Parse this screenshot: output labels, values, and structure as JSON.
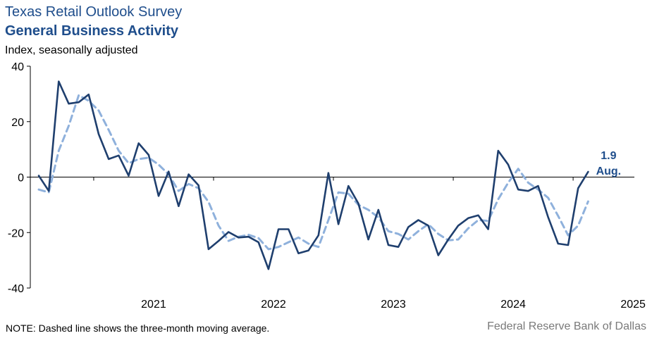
{
  "header": {
    "title": "Texas Retail Outlook Survey",
    "subtitle": "General Business Activity",
    "unit": "Index, seasonally adjusted"
  },
  "footer": {
    "note": "NOTE: Dashed line shows the three-month moving average.",
    "source": "Federal Reserve Bank of Dallas"
  },
  "colors": {
    "index_line": "#1f3f6e",
    "moving_average_line": "#8fb1dc",
    "label": "#1f4e8c"
  },
  "chart_data": {
    "type": "line",
    "title": "General Business Activity",
    "ylabel": "Index, seasonally adjusted",
    "xlabel": "",
    "ylim": [
      -40,
      40
    ],
    "y_ticks": [
      40,
      20,
      0,
      -20,
      -40
    ],
    "x_tick_labels": [
      "2021",
      "2022",
      "2023",
      "2024",
      "2025"
    ],
    "x_start": "2020-07",
    "grid": false,
    "last_value_label": {
      "value": "1.9",
      "month": "Aug."
    },
    "series": [
      {
        "style": "solid",
        "values": [
          0.5,
          -5.0,
          34.5,
          26.5,
          27.0,
          29.8,
          15.5,
          6.5,
          7.8,
          0.5,
          12.2,
          8.0,
          -6.8,
          2.0,
          -10.5,
          1.0,
          -3.0,
          -26.0,
          -23.0,
          -19.8,
          -21.8,
          -21.5,
          -23.5,
          -33.2,
          -18.8,
          -18.8,
          -27.5,
          -26.5,
          -21.0,
          1.5,
          -17.0,
          -3.2,
          -9.5,
          -22.5,
          -11.8,
          -24.5,
          -25.2,
          -18.0,
          -15.5,
          -17.5,
          -28.2,
          -22.5,
          -17.5,
          -14.8,
          -13.8,
          -18.8,
          9.5,
          4.5,
          -4.5,
          -5.0,
          -3.2,
          -14.5,
          -24.0,
          -24.5,
          -4.0,
          1.9
        ]
      },
      {
        "style": "dashed",
        "values": [
          -4.5,
          -5.5,
          9.5,
          18.5,
          29.5,
          27.5,
          24.0,
          17.0,
          9.5,
          5.0,
          6.5,
          7.0,
          4.5,
          1.0,
          -5.0,
          -2.5,
          -4.0,
          -9.0,
          -17.5,
          -23.0,
          -21.5,
          -20.8,
          -22.0,
          -26.0,
          -25.2,
          -23.5,
          -21.8,
          -24.0,
          -25.2,
          -15.5,
          -5.5,
          -6.0,
          -10.0,
          -11.8,
          -14.5,
          -19.5,
          -20.5,
          -22.5,
          -19.5,
          -17.0,
          -20.5,
          -22.8,
          -22.5,
          -18.5,
          -15.5,
          -15.8,
          -8.0,
          -2.0,
          3.0,
          -2.0,
          -4.5,
          -7.5,
          -14.0,
          -21.0,
          -17.5,
          -8.8
        ]
      }
    ]
  }
}
